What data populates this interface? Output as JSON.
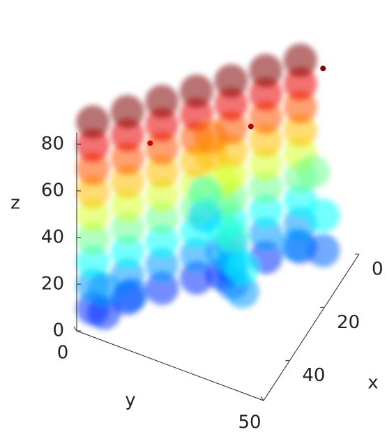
{
  "chart_data": {
    "type": "scatter3d",
    "colormap": "jet",
    "xlabel": "x",
    "ylabel": "y",
    "zlabel": "z",
    "xlim": [
      0,
      55
    ],
    "ylim": [
      0,
      50
    ],
    "zlim": [
      0,
      85
    ],
    "xticks": [
      0,
      20,
      40
    ],
    "yticks": [
      0,
      50
    ],
    "zticks": [
      0,
      20,
      40,
      60,
      80
    ],
    "points": [
      [
        50,
        2,
        5
      ],
      [
        50,
        2,
        15
      ],
      [
        50,
        2,
        25
      ],
      [
        50,
        2,
        35
      ],
      [
        50,
        2,
        45
      ],
      [
        50,
        2,
        55
      ],
      [
        50,
        2,
        65
      ],
      [
        50,
        2,
        75
      ],
      [
        50,
        2,
        85
      ],
      [
        43,
        8,
        5
      ],
      [
        43,
        8,
        15
      ],
      [
        43,
        8,
        25
      ],
      [
        43,
        8,
        35
      ],
      [
        43,
        8,
        45
      ],
      [
        43,
        8,
        55
      ],
      [
        43,
        8,
        65
      ],
      [
        43,
        8,
        75
      ],
      [
        43,
        8,
        85
      ],
      [
        36,
        14,
        5
      ],
      [
        36,
        14,
        15
      ],
      [
        36,
        14,
        25
      ],
      [
        36,
        14,
        35
      ],
      [
        36,
        14,
        45
      ],
      [
        36,
        14,
        55
      ],
      [
        36,
        14,
        65
      ],
      [
        36,
        14,
        75
      ],
      [
        36,
        14,
        85
      ],
      [
        29,
        20,
        5
      ],
      [
        29,
        20,
        15
      ],
      [
        29,
        20,
        25
      ],
      [
        29,
        20,
        35
      ],
      [
        29,
        20,
        45
      ],
      [
        29,
        20,
        55
      ],
      [
        29,
        20,
        65
      ],
      [
        29,
        20,
        75
      ],
      [
        29,
        20,
        85
      ],
      [
        22,
        26,
        5
      ],
      [
        22,
        26,
        15
      ],
      [
        22,
        26,
        25
      ],
      [
        22,
        26,
        35
      ],
      [
        22,
        26,
        45
      ],
      [
        22,
        26,
        55
      ],
      [
        22,
        26,
        65
      ],
      [
        22,
        26,
        75
      ],
      [
        22,
        26,
        85
      ],
      [
        15,
        32,
        5
      ],
      [
        15,
        32,
        15
      ],
      [
        15,
        32,
        25
      ],
      [
        15,
        32,
        35
      ],
      [
        15,
        32,
        45
      ],
      [
        15,
        32,
        55
      ],
      [
        15,
        32,
        65
      ],
      [
        15,
        32,
        75
      ],
      [
        15,
        32,
        85
      ],
      [
        8,
        38,
        5
      ],
      [
        8,
        38,
        15
      ],
      [
        8,
        38,
        25
      ],
      [
        8,
        38,
        35
      ],
      [
        8,
        38,
        45
      ],
      [
        8,
        38,
        55
      ],
      [
        8,
        38,
        65
      ],
      [
        8,
        38,
        75
      ],
      [
        8,
        38,
        85
      ],
      [
        25,
        25,
        5
      ],
      [
        25,
        25,
        15
      ],
      [
        25,
        25,
        25
      ],
      [
        25,
        25,
        35
      ],
      [
        25,
        25,
        45
      ],
      [
        25,
        22,
        55
      ],
      [
        25,
        22,
        62
      ],
      [
        30,
        30,
        10
      ],
      [
        30,
        30,
        20
      ],
      [
        30,
        30,
        30
      ],
      [
        20,
        18,
        20
      ],
      [
        20,
        18,
        30
      ],
      [
        35,
        35,
        15
      ],
      [
        35,
        35,
        25
      ],
      [
        50,
        5,
        5
      ],
      [
        50,
        5,
        15
      ],
      [
        45,
        10,
        10
      ],
      [
        10,
        45,
        10
      ],
      [
        10,
        45,
        25
      ],
      [
        5,
        40,
        35
      ],
      [
        15,
        40,
        15
      ]
    ],
    "outliers": [
      [
        45,
        15,
        78
      ],
      [
        30,
        35,
        80
      ],
      [
        10,
        45,
        88
      ]
    ]
  }
}
